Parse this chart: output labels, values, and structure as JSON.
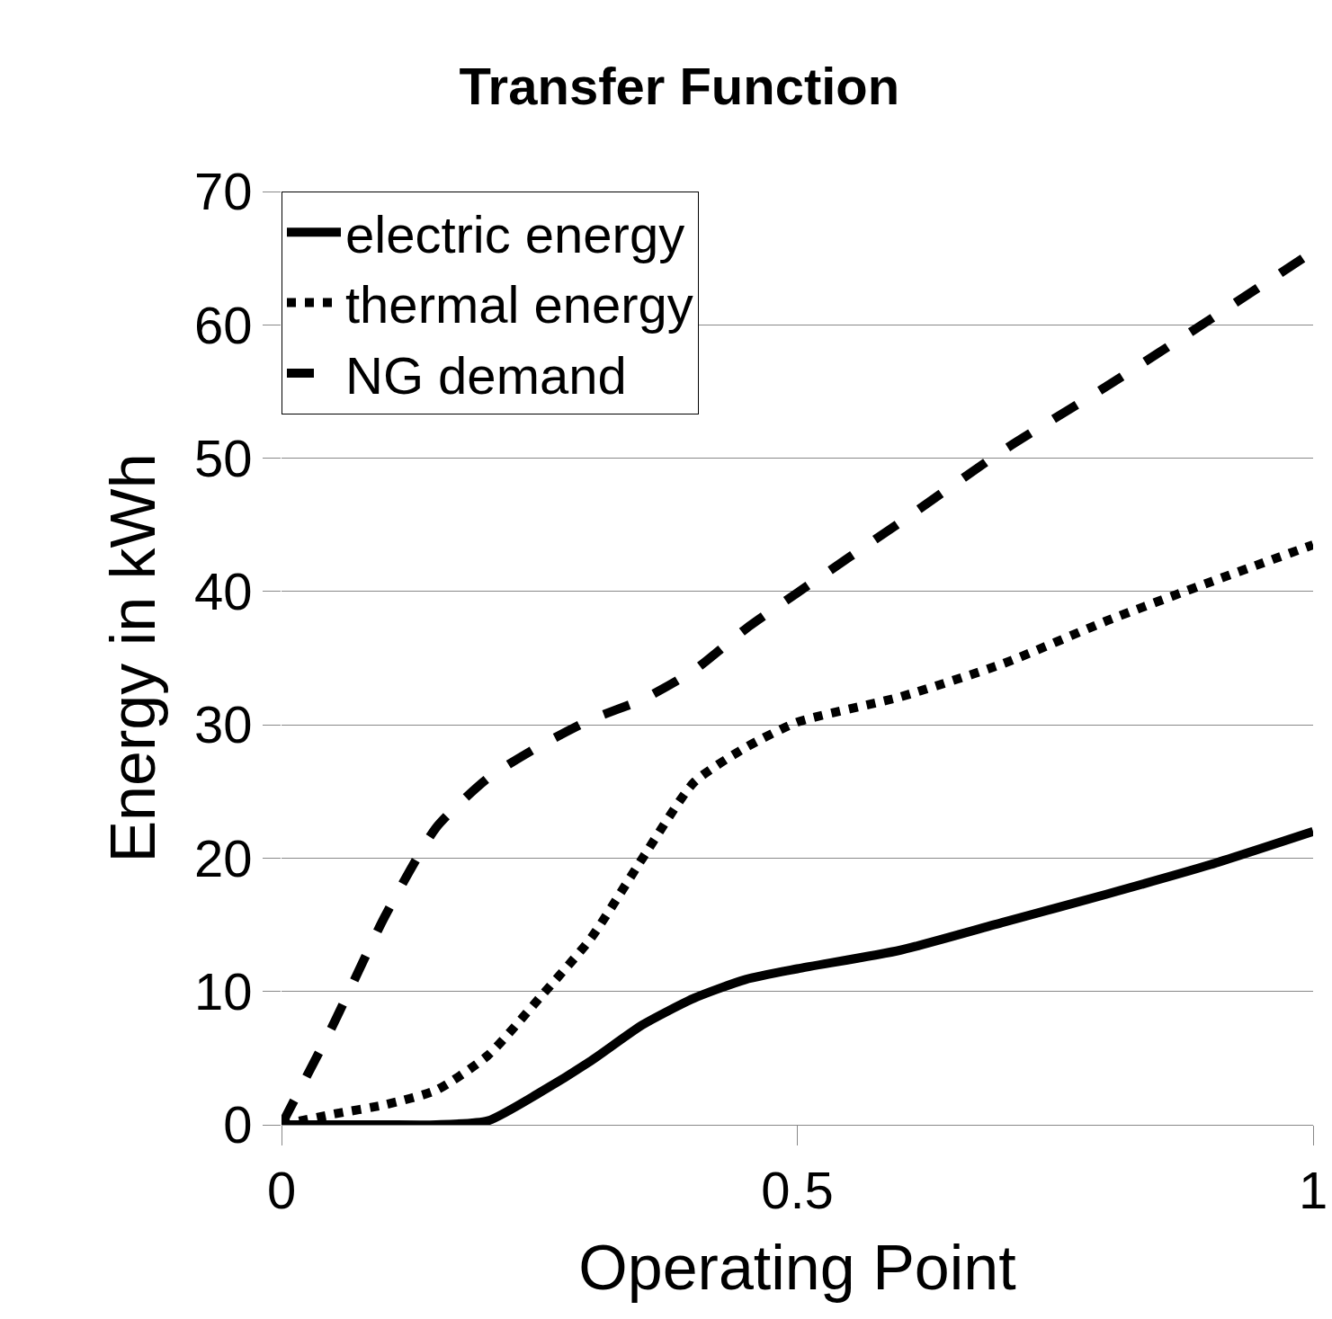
{
  "chart_data": {
    "type": "line",
    "title": "Transfer Function",
    "xlabel": "Operating Point",
    "ylabel": "Energy in kWh",
    "x": [
      0,
      0.05,
      0.1,
      0.15,
      0.2,
      0.25,
      0.3,
      0.35,
      0.4,
      0.45,
      0.5,
      0.6,
      0.7,
      0.8,
      0.9,
      1.0
    ],
    "series": [
      {
        "name": "electric energy",
        "color": "#000000",
        "line_style": "solid",
        "values": [
          0,
          0,
          0,
          0,
          0.3,
          2.4,
          4.8,
          7.5,
          9.5,
          10.9,
          11.7,
          13.1,
          15.2,
          17.3,
          19.5,
          22
        ]
      },
      {
        "name": "thermal energy",
        "color": "#000000",
        "line_style": "dotted",
        "values": [
          0,
          0.8,
          1.5,
          2.6,
          5.2,
          9.5,
          14,
          20,
          25.7,
          28.3,
          30.2,
          32.1,
          34.6,
          37.8,
          40.7,
          43.5
        ]
      },
      {
        "name": "NG demand",
        "color": "#000000",
        "line_style": "dashed",
        "values": [
          0,
          7.5,
          15.6,
          22.3,
          26,
          28.4,
          30.4,
          31.9,
          34.1,
          37.2,
          39.9,
          45.2,
          50.6,
          55.4,
          60.4,
          65.5
        ]
      }
    ],
    "xlim": [
      0,
      1
    ],
    "xticks": [
      0,
      0.5,
      1
    ],
    "ylim": [
      0,
      70
    ],
    "yticks": [
      0,
      10,
      20,
      30,
      40,
      50,
      60,
      70
    ],
    "grid": "y",
    "legend": "top left",
    "marker": "none"
  }
}
